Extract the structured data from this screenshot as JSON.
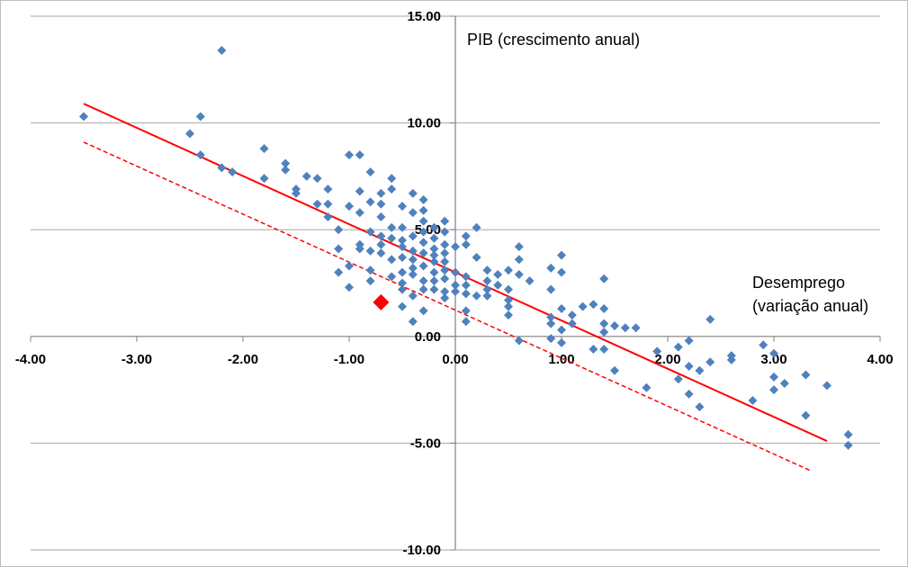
{
  "chart_data": {
    "type": "scatter",
    "title": "",
    "xlabel": "",
    "ylabel": "",
    "xlim": [
      -4,
      4
    ],
    "ylim": [
      -10,
      15
    ],
    "x_ticks": [
      "-4.00",
      "-3.00",
      "-2.00",
      "-1.00",
      "0.00",
      "1.00",
      "2.00",
      "3.00",
      "4.00"
    ],
    "y_ticks": [
      "15.00",
      "10.00",
      "5.00",
      "0.00",
      "-5.00",
      "-10.00"
    ],
    "grid": "horizontal",
    "annotations": {
      "y_axis": "PIB (crescimento anual)",
      "x_axis_line1": "Desemprego",
      "x_axis_line2": "(variação anual)"
    },
    "colors": {
      "points": "#4f81bd",
      "highlight": "#ff0000",
      "fit_line": "#ff0000",
      "grid": "#a6a6a6"
    },
    "fit_line": {
      "style": "solid",
      "x": [
        -3.5,
        3.5
      ],
      "y": [
        10.9,
        -4.9
      ]
    },
    "shifted_line": {
      "style": "dashed",
      "x": [
        -3.5,
        3.35
      ],
      "y": [
        9.1,
        -6.3
      ]
    },
    "highlight_point": {
      "x": -0.7,
      "y": 1.6
    },
    "points": [
      [
        -3.5,
        10.3
      ],
      [
        -2.5,
        9.5
      ],
      [
        -2.4,
        10.3
      ],
      [
        -2.4,
        8.5
      ],
      [
        -2.2,
        13.4
      ],
      [
        -2.2,
        7.9
      ],
      [
        -2.1,
        7.7
      ],
      [
        -1.8,
        8.8
      ],
      [
        -1.8,
        7.4
      ],
      [
        -1.6,
        8.1
      ],
      [
        -1.6,
        7.8
      ],
      [
        -1.5,
        6.9
      ],
      [
        -1.5,
        6.7
      ],
      [
        -1.4,
        7.5
      ],
      [
        -1.3,
        7.4
      ],
      [
        -1.3,
        6.2
      ],
      [
        -1.2,
        5.6
      ],
      [
        -1.2,
        6.2
      ],
      [
        -1.2,
        6.9
      ],
      [
        -1.1,
        5.0
      ],
      [
        -1.1,
        4.1
      ],
      [
        -1.1,
        3.0
      ],
      [
        -1.0,
        8.5
      ],
      [
        -1.0,
        6.1
      ],
      [
        -1.0,
        3.3
      ],
      [
        -1.0,
        2.3
      ],
      [
        -0.9,
        8.5
      ],
      [
        -0.9,
        6.8
      ],
      [
        -0.9,
        5.8
      ],
      [
        -0.9,
        4.3
      ],
      [
        -0.9,
        4.1
      ],
      [
        -0.8,
        7.7
      ],
      [
        -0.8,
        6.3
      ],
      [
        -0.8,
        4.9
      ],
      [
        -0.8,
        4.0
      ],
      [
        -0.8,
        3.1
      ],
      [
        -0.8,
        2.6
      ],
      [
        -0.7,
        6.7
      ],
      [
        -0.7,
        6.2
      ],
      [
        -0.7,
        5.6
      ],
      [
        -0.7,
        4.7
      ],
      [
        -0.7,
        4.3
      ],
      [
        -0.7,
        3.9
      ],
      [
        -0.6,
        7.4
      ],
      [
        -0.6,
        6.9
      ],
      [
        -0.6,
        5.1
      ],
      [
        -0.6,
        4.6
      ],
      [
        -0.6,
        3.6
      ],
      [
        -0.6,
        2.8
      ],
      [
        -0.5,
        6.1
      ],
      [
        -0.5,
        5.1
      ],
      [
        -0.5,
        4.5
      ],
      [
        -0.5,
        4.2
      ],
      [
        -0.5,
        3.7
      ],
      [
        -0.5,
        3.0
      ],
      [
        -0.5,
        2.5
      ],
      [
        -0.5,
        2.2
      ],
      [
        -0.5,
        1.4
      ],
      [
        -0.4,
        6.7
      ],
      [
        -0.4,
        5.8
      ],
      [
        -0.4,
        4.7
      ],
      [
        -0.4,
        4.0
      ],
      [
        -0.4,
        3.6
      ],
      [
        -0.4,
        3.2
      ],
      [
        -0.4,
        2.9
      ],
      [
        -0.4,
        1.9
      ],
      [
        -0.4,
        0.7
      ],
      [
        -0.3,
        6.4
      ],
      [
        -0.3,
        5.9
      ],
      [
        -0.3,
        5.4
      ],
      [
        -0.3,
        4.9
      ],
      [
        -0.3,
        4.4
      ],
      [
        -0.3,
        3.9
      ],
      [
        -0.3,
        3.3
      ],
      [
        -0.3,
        2.6
      ],
      [
        -0.3,
        2.2
      ],
      [
        -0.3,
        1.2
      ],
      [
        -0.2,
        5.1
      ],
      [
        -0.2,
        4.6
      ],
      [
        -0.2,
        4.1
      ],
      [
        -0.2,
        3.8
      ],
      [
        -0.2,
        3.5
      ],
      [
        -0.2,
        3.0
      ],
      [
        -0.2,
        2.6
      ],
      [
        -0.2,
        2.2
      ],
      [
        -0.1,
        5.4
      ],
      [
        -0.1,
        4.9
      ],
      [
        -0.1,
        4.3
      ],
      [
        -0.1,
        3.9
      ],
      [
        -0.1,
        3.5
      ],
      [
        -0.1,
        3.1
      ],
      [
        -0.1,
        2.7
      ],
      [
        -0.1,
        2.1
      ],
      [
        -0.1,
        1.8
      ],
      [
        0.0,
        4.2
      ],
      [
        0.0,
        3.0
      ],
      [
        0.0,
        2.4
      ],
      [
        0.0,
        2.1
      ],
      [
        0.1,
        4.7
      ],
      [
        0.1,
        4.3
      ],
      [
        0.1,
        2.8
      ],
      [
        0.1,
        2.4
      ],
      [
        0.1,
        2.0
      ],
      [
        0.1,
        1.2
      ],
      [
        0.1,
        0.7
      ],
      [
        0.2,
        5.1
      ],
      [
        0.2,
        3.7
      ],
      [
        0.2,
        1.9
      ],
      [
        0.3,
        3.1
      ],
      [
        0.3,
        2.6
      ],
      [
        0.3,
        2.2
      ],
      [
        0.3,
        1.9
      ],
      [
        0.4,
        2.9
      ],
      [
        0.4,
        2.4
      ],
      [
        0.5,
        3.1
      ],
      [
        0.5,
        2.2
      ],
      [
        0.5,
        1.7
      ],
      [
        0.5,
        1.4
      ],
      [
        0.5,
        1.0
      ],
      [
        0.6,
        4.2
      ],
      [
        0.6,
        3.6
      ],
      [
        0.6,
        2.9
      ],
      [
        0.6,
        -0.2
      ],
      [
        0.7,
        2.6
      ],
      [
        0.9,
        3.2
      ],
      [
        0.9,
        2.2
      ],
      [
        0.9,
        0.9
      ],
      [
        0.9,
        0.6
      ],
      [
        0.9,
        -0.1
      ],
      [
        1.0,
        3.8
      ],
      [
        1.0,
        3.0
      ],
      [
        1.0,
        1.3
      ],
      [
        1.0,
        0.3
      ],
      [
        1.0,
        -0.3
      ],
      [
        1.1,
        1.0
      ],
      [
        1.1,
        0.6
      ],
      [
        1.2,
        1.4
      ],
      [
        1.3,
        1.5
      ],
      [
        1.3,
        -0.6
      ],
      [
        1.4,
        2.7
      ],
      [
        1.4,
        1.3
      ],
      [
        1.4,
        0.6
      ],
      [
        1.4,
        0.2
      ],
      [
        1.4,
        -0.6
      ],
      [
        1.5,
        -1.6
      ],
      [
        1.5,
        0.5
      ],
      [
        1.6,
        0.4
      ],
      [
        1.7,
        0.4
      ],
      [
        1.8,
        -2.4
      ],
      [
        1.9,
        -0.7
      ],
      [
        2.1,
        -0.5
      ],
      [
        2.1,
        -2.0
      ],
      [
        2.2,
        -0.2
      ],
      [
        2.2,
        -1.4
      ],
      [
        2.2,
        -2.7
      ],
      [
        2.3,
        -1.6
      ],
      [
        2.3,
        -3.3
      ],
      [
        2.4,
        0.8
      ],
      [
        2.4,
        -1.2
      ],
      [
        2.6,
        -0.9
      ],
      [
        2.6,
        -1.1
      ],
      [
        2.8,
        -3.0
      ],
      [
        2.9,
        -0.4
      ],
      [
        3.0,
        -0.8
      ],
      [
        3.0,
        -1.9
      ],
      [
        3.0,
        -2.5
      ],
      [
        3.1,
        -2.2
      ],
      [
        3.3,
        -1.8
      ],
      [
        3.3,
        -3.7
      ],
      [
        3.5,
        -2.3
      ],
      [
        3.7,
        -4.6
      ],
      [
        3.7,
        -5.1
      ]
    ]
  }
}
